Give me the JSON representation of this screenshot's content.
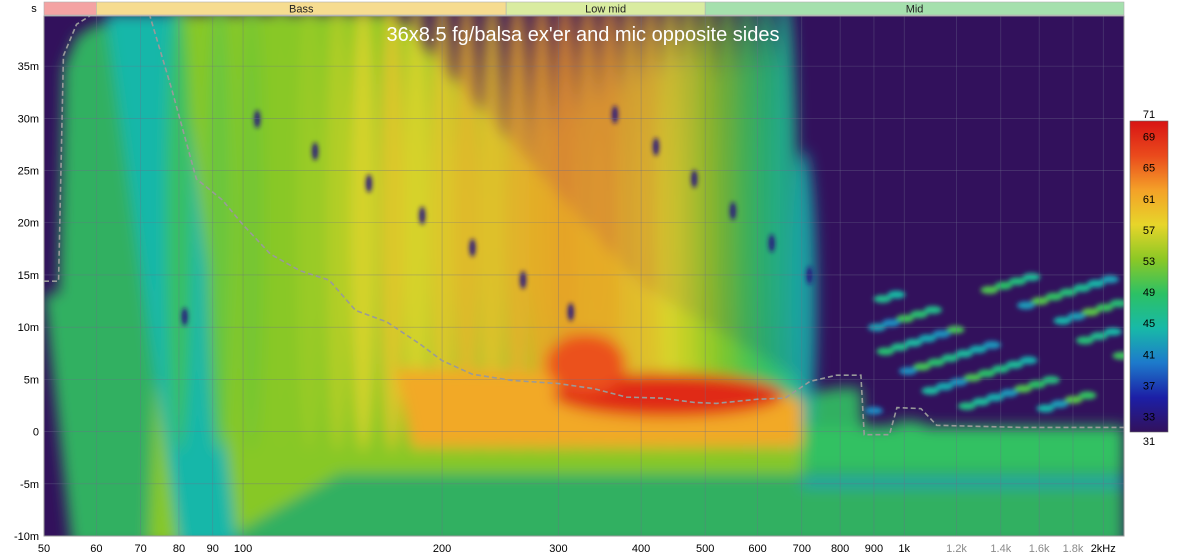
{
  "chart_data": {
    "type": "heatmap",
    "title": "36x8.5 fg/balsa ex'er and mic opposite sides",
    "y_unit_label": "s",
    "x_scale": "log",
    "x_range_hz": [
      50,
      2150
    ],
    "y_range_s": [
      -0.01,
      0.0398
    ],
    "x_ticks": [
      {
        "label": "50",
        "value": 50,
        "muted": false
      },
      {
        "label": "60",
        "value": 60,
        "muted": false
      },
      {
        "label": "70",
        "value": 70,
        "muted": false
      },
      {
        "label": "80",
        "value": 80,
        "muted": false
      },
      {
        "label": "90",
        "value": 90,
        "muted": false
      },
      {
        "label": "100",
        "value": 100,
        "muted": false
      },
      {
        "label": "200",
        "value": 200,
        "muted": false
      },
      {
        "label": "300",
        "value": 300,
        "muted": false
      },
      {
        "label": "400",
        "value": 400,
        "muted": false
      },
      {
        "label": "500",
        "value": 500,
        "muted": false
      },
      {
        "label": "600",
        "value": 600,
        "muted": false
      },
      {
        "label": "700",
        "value": 700,
        "muted": false
      },
      {
        "label": "800",
        "value": 800,
        "muted": false
      },
      {
        "label": "900",
        "value": 900,
        "muted": false
      },
      {
        "label": "1k",
        "value": 1000,
        "muted": false
      },
      {
        "label": "1.2k",
        "value": 1200,
        "muted": true
      },
      {
        "label": "1.4k",
        "value": 1400,
        "muted": true
      },
      {
        "label": "1.6k",
        "value": 1600,
        "muted": true
      },
      {
        "label": "1.8k",
        "value": 1800,
        "muted": true
      },
      {
        "label": "2kHz",
        "value": 2000,
        "muted": false
      }
    ],
    "y_ticks": [
      {
        "label": "35m",
        "value": 0.035
      },
      {
        "label": "30m",
        "value": 0.03
      },
      {
        "label": "25m",
        "value": 0.025
      },
      {
        "label": "20m",
        "value": 0.02
      },
      {
        "label": "15m",
        "value": 0.015
      },
      {
        "label": "10m",
        "value": 0.01
      },
      {
        "label": "5m",
        "value": 0.005
      },
      {
        "label": "0",
        "value": 0
      },
      {
        "label": "-5m",
        "value": -0.005
      },
      {
        "label": "-10m",
        "value": -0.01
      }
    ],
    "bands": [
      {
        "label": "",
        "from": 50,
        "to": 60,
        "color": "#f4a3a3"
      },
      {
        "label": "Bass",
        "from": 60,
        "to": 250,
        "color": "#f6dc90"
      },
      {
        "label": "Low mid",
        "from": 250,
        "to": 500,
        "color": "#d9eca0"
      },
      {
        "label": "Mid",
        "from": 500,
        "to": 2150,
        "color": "#a5e0ad"
      }
    ],
    "colorbar": {
      "min": 31,
      "max": 71,
      "labels": [
        71,
        69,
        65,
        61,
        57,
        53,
        49,
        45,
        41,
        37,
        33,
        31
      ],
      "stops": [
        "#32115c",
        "#1c1fa6",
        "#1d7acb",
        "#18b9a8",
        "#2cc165",
        "#8cc825",
        "#e7d52a",
        "#f4a128",
        "#ea4a1c",
        "#d81414"
      ]
    },
    "envelope": [
      {
        "f": 50,
        "t": 0.0144
      },
      {
        "f": 52.6,
        "t": 0.0144
      },
      {
        "f": 53.5,
        "t": 0.036
      },
      {
        "f": 56,
        "t": 0.039
      },
      {
        "f": 60,
        "t": 0.0402
      },
      {
        "f": 72,
        "t": 0.0402
      },
      {
        "f": 78,
        "t": 0.0328
      },
      {
        "f": 85,
        "t": 0.0242
      },
      {
        "f": 93,
        "t": 0.0222
      },
      {
        "f": 100,
        "t": 0.0198
      },
      {
        "f": 110,
        "t": 0.017
      },
      {
        "f": 122,
        "t": 0.0154
      },
      {
        "f": 135,
        "t": 0.0145
      },
      {
        "f": 148,
        "t": 0.0116
      },
      {
        "f": 165,
        "t": 0.0105
      },
      {
        "f": 185,
        "t": 0.0084
      },
      {
        "f": 200,
        "t": 0.0068
      },
      {
        "f": 222,
        "t": 0.0055
      },
      {
        "f": 255,
        "t": 0.0049
      },
      {
        "f": 300,
        "t": 0.0046
      },
      {
        "f": 340,
        "t": 0.0041
      },
      {
        "f": 380,
        "t": 0.0033
      },
      {
        "f": 430,
        "t": 0.0032
      },
      {
        "f": 480,
        "t": 0.0028
      },
      {
        "f": 520,
        "t": 0.0027
      },
      {
        "f": 600,
        "t": 0.0031
      },
      {
        "f": 660,
        "t": 0.0032
      },
      {
        "f": 720,
        "t": 0.0048
      },
      {
        "f": 790,
        "t": 0.0054
      },
      {
        "f": 860,
        "t": 0.0054
      },
      {
        "f": 870,
        "t": -0.0003
      },
      {
        "f": 950,
        "t": -0.0003
      },
      {
        "f": 975,
        "t": 0.0023
      },
      {
        "f": 1060,
        "t": 0.0022
      },
      {
        "f": 1120,
        "t": 0.0006
      },
      {
        "f": 1500,
        "t": 0.0004
      },
      {
        "f": 2150,
        "t": 0.0004
      }
    ],
    "ridges": [
      {
        "f": 80,
        "strength": 0.55
      },
      {
        "f": 92,
        "strength": 0.6
      },
      {
        "f": 103,
        "strength": 0.62
      },
      {
        "f": 114,
        "strength": 0.65
      },
      {
        "f": 126,
        "strength": 0.68
      },
      {
        "f": 139,
        "strength": 0.72
      },
      {
        "f": 152,
        "strength": 0.78
      },
      {
        "f": 168,
        "strength": 0.82
      },
      {
        "f": 183,
        "strength": 0.78
      },
      {
        "f": 200,
        "strength": 0.82
      },
      {
        "f": 218,
        "strength": 0.86
      },
      {
        "f": 238,
        "strength": 0.84
      },
      {
        "f": 260,
        "strength": 0.88
      },
      {
        "f": 283,
        "strength": 0.9
      },
      {
        "f": 307,
        "strength": 0.92
      },
      {
        "f": 332,
        "strength": 0.9
      },
      {
        "f": 358,
        "strength": 0.9
      },
      {
        "f": 385,
        "strength": 0.86
      },
      {
        "f": 413,
        "strength": 0.84
      },
      {
        "f": 442,
        "strength": 0.78
      },
      {
        "f": 472,
        "strength": 0.74
      },
      {
        "f": 504,
        "strength": 0.68
      },
      {
        "f": 540,
        "strength": 0.62
      },
      {
        "f": 578,
        "strength": 0.56
      },
      {
        "f": 618,
        "strength": 0.5
      },
      {
        "f": 660,
        "strength": 0.44
      },
      {
        "f": 705,
        "strength": 0.38
      }
    ]
  }
}
